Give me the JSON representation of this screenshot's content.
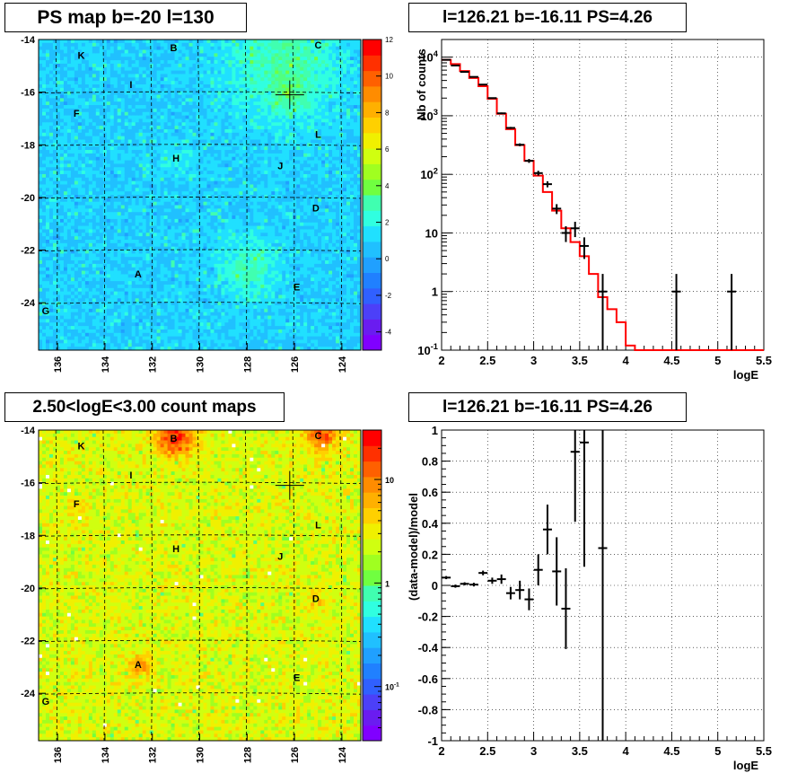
{
  "panels": {
    "tl_title": "PS map b=-20 l=130",
    "tr_title": "l=126.21 b=-16.11 PS=4.26",
    "bl_title": "2.50<logE<3.00 count maps",
    "br_title": "l=126.21 b=-16.11 PS=4.26"
  },
  "chart_data": [
    {
      "type": "heatmap",
      "title": "PS map b=-20 l=130",
      "xticks": [
        136,
        134,
        132,
        130,
        128,
        126,
        124
      ],
      "yticks": [
        -14,
        -16,
        -18,
        -20,
        -22,
        -24
      ],
      "xlim": [
        136.8,
        123.2
      ],
      "ylim": [
        -25.8,
        -14
      ],
      "colorbar": {
        "min": -5,
        "max": 12,
        "ticks": [
          12,
          10,
          8,
          6,
          4,
          2,
          0,
          -2,
          -4
        ]
      },
      "sources": [
        {
          "label": "K",
          "l": 135.0,
          "b": -14.6
        },
        {
          "label": "B",
          "l": 131.1,
          "b": -14.3
        },
        {
          "label": "C",
          "l": 125.0,
          "b": -14.2
        },
        {
          "label": "I",
          "l": 132.9,
          "b": -15.7
        },
        {
          "label": "F",
          "l": 135.2,
          "b": -16.8
        },
        {
          "label": "L",
          "l": 125.0,
          "b": -17.6
        },
        {
          "label": "H",
          "l": 131.0,
          "b": -18.5
        },
        {
          "label": "J",
          "l": 126.6,
          "b": -18.8
        },
        {
          "label": "D",
          "l": 125.1,
          "b": -20.4
        },
        {
          "label": "A",
          "l": 132.6,
          "b": -22.9
        },
        {
          "label": "E",
          "l": 125.9,
          "b": -23.4
        },
        {
          "label": "G",
          "l": 136.5,
          "b": -24.3
        }
      ],
      "marker": {
        "l": 126.2,
        "b": -16.1
      }
    },
    {
      "type": "line",
      "title": "l=126.21 b=-16.11 PS=4.26",
      "xlabel": "logE",
      "ylabel": "Nb of counts",
      "xlim": [
        2,
        5.5
      ],
      "ylim": [
        0.1,
        20000
      ],
      "yscale": "log",
      "xticks": [
        2,
        2.5,
        3,
        3.5,
        4,
        4.5,
        5,
        5.5
      ],
      "ytick_labels": [
        "10^-1",
        "1",
        "10",
        "10^2",
        "10^3",
        "10^4"
      ],
      "grid": true,
      "data_points": [
        {
          "x": 2.05,
          "y": 9000,
          "err": 100
        },
        {
          "x": 2.15,
          "y": 7200,
          "err": 90
        },
        {
          "x": 2.25,
          "y": 5600,
          "err": 80
        },
        {
          "x": 2.35,
          "y": 4600,
          "err": 70
        },
        {
          "x": 2.45,
          "y": 3400,
          "err": 60
        },
        {
          "x": 2.55,
          "y": 2000,
          "err": 45
        },
        {
          "x": 2.65,
          "y": 1100,
          "err": 35
        },
        {
          "x": 2.75,
          "y": 620,
          "err": 25
        },
        {
          "x": 2.85,
          "y": 320,
          "err": 18
        },
        {
          "x": 2.95,
          "y": 170,
          "err": 13
        },
        {
          "x": 3.05,
          "y": 105,
          "err": 10
        },
        {
          "x": 3.15,
          "y": 68,
          "err": 8
        },
        {
          "x": 3.25,
          "y": 26,
          "err": 5
        },
        {
          "x": 3.35,
          "y": 10,
          "err": 3
        },
        {
          "x": 3.45,
          "y": 12,
          "err": 3.5
        },
        {
          "x": 3.55,
          "y": 6,
          "err": 2.4
        },
        {
          "x": 3.75,
          "y": 1,
          "err": 1
        },
        {
          "x": 4.55,
          "y": 1,
          "err": 1
        },
        {
          "x": 5.15,
          "y": 1,
          "err": 1
        }
      ],
      "model_steps": [
        {
          "x0": 2.0,
          "x1": 2.1,
          "y": 9000
        },
        {
          "x0": 2.1,
          "y": 7600,
          "x1": 2.2
        },
        {
          "x0": 2.2,
          "x1": 2.3,
          "y": 5800
        },
        {
          "x0": 2.3,
          "x1": 2.4,
          "y": 4400
        },
        {
          "x0": 2.4,
          "x1": 2.5,
          "y": 3200
        },
        {
          "x0": 2.5,
          "x1": 2.6,
          "y": 1950
        },
        {
          "x0": 2.6,
          "x1": 2.7,
          "y": 1080
        },
        {
          "x0": 2.7,
          "x1": 2.8,
          "y": 590
        },
        {
          "x0": 2.8,
          "x1": 2.9,
          "y": 315
        },
        {
          "x0": 2.9,
          "x1": 3.0,
          "y": 170
        },
        {
          "x0": 3.0,
          "x1": 3.1,
          "y": 95
        },
        {
          "x0": 3.1,
          "x1": 3.2,
          "y": 50
        },
        {
          "x0": 3.2,
          "x1": 3.3,
          "y": 24
        },
        {
          "x0": 3.3,
          "x1": 3.4,
          "y": 12
        },
        {
          "x0": 3.4,
          "x1": 3.5,
          "y": 7
        },
        {
          "x0": 3.5,
          "x1": 3.6,
          "y": 4
        },
        {
          "x0": 3.6,
          "x1": 3.7,
          "y": 2
        },
        {
          "x0": 3.7,
          "x1": 3.8,
          "y": 0.8
        },
        {
          "x0": 3.8,
          "x1": 3.9,
          "y": 0.5
        },
        {
          "x0": 3.9,
          "x1": 4.0,
          "y": 0.3
        },
        {
          "x0": 4.0,
          "x1": 4.1,
          "y": 0.12
        },
        {
          "x0": 4.1,
          "x1": 5.5,
          "y": 0.1
        }
      ],
      "model_color": "#ff0000"
    },
    {
      "type": "heatmap",
      "title": "2.50<logE<3.00 count maps",
      "xticks": [
        136,
        134,
        132,
        130,
        128,
        126,
        124
      ],
      "yticks": [
        -14,
        -16,
        -18,
        -20,
        -22,
        -24
      ],
      "xlim": [
        136.8,
        123.2
      ],
      "ylim": [
        -25.8,
        -14
      ],
      "colorbar": {
        "scale": "log",
        "min": 0.03,
        "max": 30,
        "tick_labels": [
          "10",
          "1",
          "10^-1"
        ]
      },
      "sources": [
        {
          "label": "K",
          "l": 135.0,
          "b": -14.6
        },
        {
          "label": "B",
          "l": 131.1,
          "b": -14.3
        },
        {
          "label": "C",
          "l": 125.0,
          "b": -14.2
        },
        {
          "label": "I",
          "l": 132.9,
          "b": -15.7
        },
        {
          "label": "F",
          "l": 135.2,
          "b": -16.8
        },
        {
          "label": "L",
          "l": 125.0,
          "b": -17.6
        },
        {
          "label": "H",
          "l": 131.0,
          "b": -18.5
        },
        {
          "label": "J",
          "l": 126.6,
          "b": -18.8
        },
        {
          "label": "D",
          "l": 125.1,
          "b": -20.4
        },
        {
          "label": "A",
          "l": 132.6,
          "b": -22.9
        },
        {
          "label": "E",
          "l": 125.9,
          "b": -23.4
        },
        {
          "label": "G",
          "l": 136.5,
          "b": -24.3
        }
      ],
      "marker": {
        "l": 126.2,
        "b": -16.1
      }
    },
    {
      "type": "scatter",
      "title": "l=126.21 b=-16.11 PS=4.26",
      "xlabel": "logE",
      "ylabel": "(data-model)/model",
      "xlim": [
        2,
        5.5
      ],
      "ylim": [
        -1,
        1
      ],
      "xticks": [
        2,
        2.5,
        3,
        3.5,
        4,
        4.5,
        5,
        5.5
      ],
      "yticks": [
        1,
        0.8,
        0.6,
        0.4,
        0.2,
        0,
        -0.2,
        -0.4,
        -0.6,
        -0.8,
        -1
      ],
      "grid": true,
      "data_points": [
        {
          "x": 2.05,
          "y": 0.05,
          "err": 0.01
        },
        {
          "x": 2.15,
          "y": -0.005,
          "err": 0.01
        },
        {
          "x": 2.25,
          "y": 0.01,
          "err": 0.01
        },
        {
          "x": 2.35,
          "y": 0.005,
          "err": 0.012
        },
        {
          "x": 2.45,
          "y": 0.08,
          "err": 0.015
        },
        {
          "x": 2.55,
          "y": 0.03,
          "err": 0.02
        },
        {
          "x": 2.65,
          "y": 0.04,
          "err": 0.03
        },
        {
          "x": 2.75,
          "y": -0.05,
          "err": 0.04
        },
        {
          "x": 2.85,
          "y": -0.03,
          "err": 0.06
        },
        {
          "x": 2.95,
          "y": -0.09,
          "err": 0.07
        },
        {
          "x": 3.05,
          "y": 0.1,
          "err": 0.1
        },
        {
          "x": 3.15,
          "y": 0.36,
          "err": 0.16
        },
        {
          "x": 3.25,
          "y": 0.09,
          "err": 0.22
        },
        {
          "x": 3.35,
          "y": -0.15,
          "err": 0.26
        },
        {
          "x": 3.45,
          "y": 0.86,
          "err": 0.45
        },
        {
          "x": 3.55,
          "y": 0.92,
          "err": 0.8
        },
        {
          "x": 3.75,
          "y": 0.24,
          "err": 1.3
        }
      ]
    }
  ]
}
